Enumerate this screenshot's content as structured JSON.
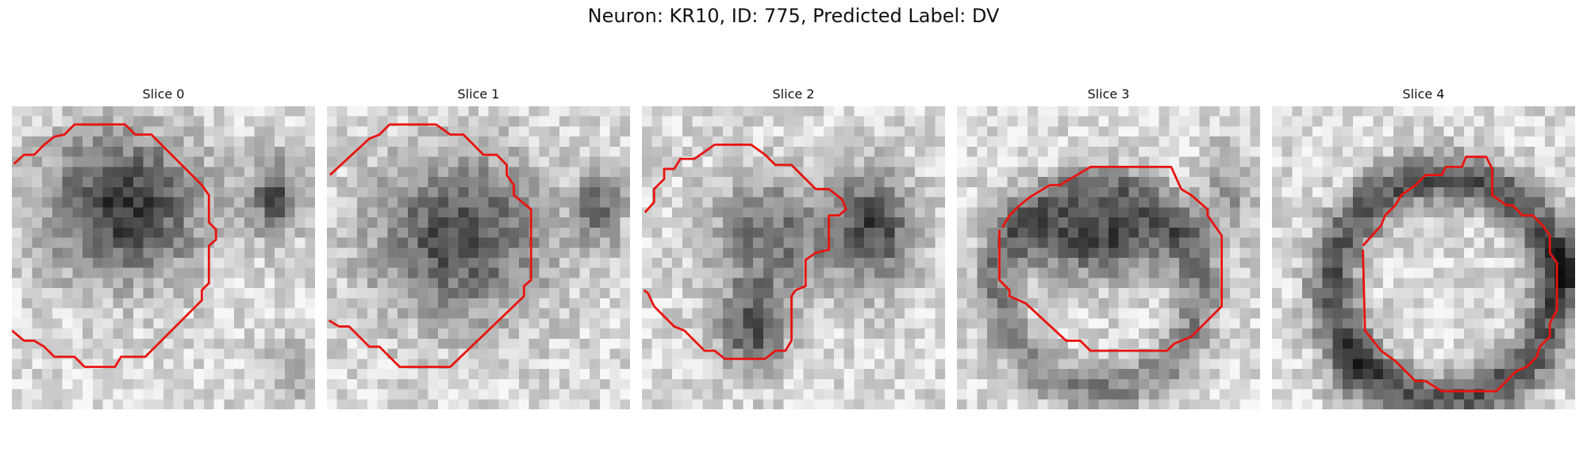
{
  "figure": {
    "title": "Neuron: KR10, ID: 775, Predicted Label: DV",
    "contour_color": "#e8140f"
  },
  "panels": [
    {
      "title": "Slice 0",
      "image_description": "grayscale micrograph tile with dark neuron soma upper-left, red contour outline"
    },
    {
      "title": "Slice 1",
      "image_description": "grayscale micrograph tile with dark rounded soma, red contour outline"
    },
    {
      "title": "Slice 2",
      "image_description": "grayscale micrograph tile with irregular dark soma, red contour outline"
    },
    {
      "title": "Slice 3",
      "image_description": "grayscale micrograph tile with dark band across center, red octagonal contour"
    },
    {
      "title": "Slice 4",
      "image_description": "grayscale micrograph tile with dark ring structure, red octagonal contour"
    }
  ]
}
